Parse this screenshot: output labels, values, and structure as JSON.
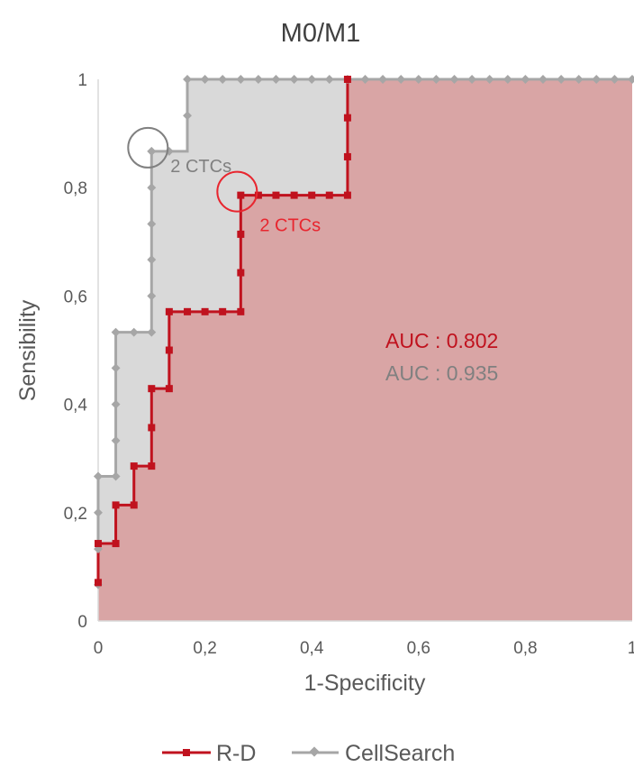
{
  "chart_data": {
    "type": "line",
    "title": "M0/M1",
    "xlabel": "1-Specificity",
    "ylabel": "Sensibility",
    "xlim": [
      0,
      1
    ],
    "ylim": [
      0,
      1
    ],
    "x_ticks": [
      "0",
      "0,2",
      "0,4",
      "0,6",
      "0,8",
      "1"
    ],
    "y_ticks": [
      "0",
      "0,2",
      "0,4",
      "0,6",
      "0,8",
      "1"
    ],
    "legend_position": "bottom",
    "series": [
      {
        "name": "CellSearch",
        "color": "#a6a6a6",
        "fill": "#d9d9d9",
        "x": [
          0,
          0,
          0,
          0,
          0,
          0.033,
          0.033,
          0.033,
          0.033,
          0.033,
          0.067,
          0.1,
          0.1,
          0.1,
          0.1,
          0.1,
          0.1,
          0.1,
          0.133,
          0.167,
          0.167,
          0.2,
          0.233,
          0.267,
          0.3,
          0.333,
          0.367,
          0.4,
          0.433,
          0.467,
          0.5,
          0.533,
          0.567,
          0.6,
          0.633,
          0.667,
          0.7,
          0.733,
          0.767,
          0.8,
          0.833,
          0.867,
          0.9,
          0.933,
          0.967,
          1
        ],
        "y": [
          0.067,
          0.133,
          0.2,
          0.267,
          0.267,
          0.267,
          0.333,
          0.4,
          0.467,
          0.533,
          0.533,
          0.533,
          0.6,
          0.667,
          0.733,
          0.8,
          0.867,
          0.867,
          0.867,
          0.933,
          1,
          1,
          1,
          1,
          1,
          1,
          1,
          1,
          1,
          1,
          1,
          1,
          1,
          1,
          1,
          1,
          1,
          1,
          1,
          1,
          1,
          1,
          1,
          1,
          1,
          1
        ]
      },
      {
        "name": "R-D",
        "color": "#c0121e",
        "fill": "#d9a5a5",
        "x": [
          0,
          0,
          0.033,
          0.033,
          0.067,
          0.067,
          0.1,
          0.1,
          0.1,
          0.133,
          0.133,
          0.133,
          0.167,
          0.2,
          0.233,
          0.267,
          0.267,
          0.267,
          0.267,
          0.3,
          0.333,
          0.367,
          0.4,
          0.433,
          0.467,
          0.467,
          0.467,
          0.467
        ],
        "y": [
          0.071,
          0.143,
          0.143,
          0.214,
          0.214,
          0.286,
          0.286,
          0.357,
          0.429,
          0.429,
          0.5,
          0.571,
          0.571,
          0.571,
          0.571,
          0.571,
          0.643,
          0.714,
          0.786,
          0.786,
          0.786,
          0.786,
          0.786,
          0.786,
          0.786,
          0.857,
          0.929,
          1
        ]
      }
    ],
    "annotations": [
      {
        "text": "2 CTCs",
        "series": "CellSearch",
        "x": 0.1,
        "y": 0.867,
        "color": "#808080"
      },
      {
        "text": "2 CTCs",
        "series": "R-D",
        "x": 0.267,
        "y": 0.786,
        "color": "#e8262f"
      }
    ],
    "auc": [
      {
        "label": "AUC : ",
        "value": "0.802",
        "color": "#c0121e"
      },
      {
        "label": "AUC : ",
        "value": "0.935",
        "color": "#808080"
      }
    ],
    "legend": [
      "R-D",
      "CellSearch"
    ]
  }
}
